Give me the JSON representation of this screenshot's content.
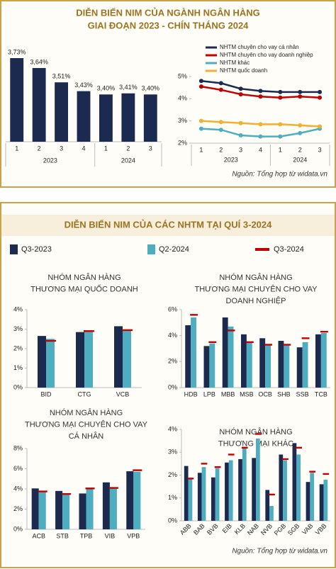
{
  "panel1": {
    "title": [
      "DIỄN BIẾN NIM CỦA NGÀNH NGÂN HÀNG",
      "GIAI ĐOẠN 2023 - CHÍN THÁNG 2024"
    ],
    "source": "Nguồn: Tổng hợp từ widata.vn"
  },
  "panel2": {
    "title": "DIỄN BIẾN NIM CỦA CÁC NHTM TẠI QUÍ 3-2024",
    "source": "Nguồn: Tổng hợp từ widata.vn",
    "legend": [
      {
        "name": "Q3-2023",
        "color": "#1b2a4e",
        "style": "bar"
      },
      {
        "name": "Q2-2024",
        "color": "#4eaebf",
        "style": "bar"
      },
      {
        "name": "Q3-2024",
        "color": "#c00000",
        "style": "marker"
      }
    ]
  },
  "chart_data": [
    {
      "type": "bar",
      "categories": [
        "1",
        "2",
        "3",
        "4",
        "1",
        "2",
        "3"
      ],
      "groups": [
        {
          "label": "2023",
          "span": 4
        },
        {
          "label": "2024",
          "span": 3
        }
      ],
      "values": [
        3.73,
        3.64,
        3.51,
        3.43,
        3.4,
        3.41,
        3.4
      ],
      "value_labels": [
        "3,73%",
        "3,64%",
        "3,51%",
        "3,43%",
        "3,40%",
        "3,41%",
        "3,40%"
      ],
      "color": "#1b2a4e"
    },
    {
      "type": "line",
      "categories": [
        "1",
        "2",
        "3",
        "4",
        "1",
        "2",
        "3"
      ],
      "groups": [
        {
          "label": "2023",
          "span": 4
        },
        {
          "label": "2024",
          "span": 3
        }
      ],
      "ylim": [
        2,
        5
      ],
      "yticks": [
        {
          "value": 2,
          "label": "2%"
        },
        {
          "value": 3,
          "label": "3%"
        },
        {
          "value": 4,
          "label": "4%"
        },
        {
          "value": 5,
          "label": "5%"
        }
      ],
      "series": [
        {
          "name": "NHTM chuyên cho vay cá nhân",
          "color": "#1b2a4e",
          "values": [
            4.8,
            4.7,
            4.45,
            4.35,
            4.3,
            4.3,
            4.3
          ]
        },
        {
          "name": "NHTM chuyên cho vay doanh nghiệp",
          "color": "#c00000",
          "values": [
            4.55,
            4.4,
            4.2,
            4.1,
            4.05,
            4.1,
            4.05
          ]
        },
        {
          "name": "NHTM khác",
          "color": "#4eaebf",
          "values": [
            2.65,
            2.6,
            2.35,
            2.3,
            2.3,
            2.45,
            2.65
          ]
        },
        {
          "name": "NHTM quốc doanh",
          "color": "#f0b030",
          "values": [
            3.0,
            2.95,
            2.9,
            2.85,
            2.85,
            2.8,
            2.75
          ]
        }
      ]
    },
    {
      "type": "bar",
      "title": [
        "NHÓM NGÂN HÀNG",
        "THƯƠNG MẠI QUỐC DOANH"
      ],
      "categories": [
        "BID",
        "CTG",
        "VCB"
      ],
      "ylim": [
        0,
        4
      ],
      "yticks": [
        {
          "value": 0,
          "label": "0%"
        },
        {
          "value": 1,
          "label": "1%"
        },
        {
          "value": 2,
          "label": "2%"
        },
        {
          "value": 3,
          "label": "3%"
        },
        {
          "value": 4,
          "label": "4%"
        }
      ],
      "series": [
        {
          "values": [
            2.65,
            2.85,
            3.15
          ]
        },
        {
          "values": [
            2.5,
            2.9,
            2.95
          ]
        },
        {
          "values": [
            2.4,
            2.9,
            2.95
          ]
        }
      ]
    },
    {
      "type": "bar",
      "title": [
        "NHÓM NGÂN HÀNG",
        "THƯƠNG MẠI CHUYÊN CHO VAY",
        "DOANH NGHIỆP"
      ],
      "categories": [
        "HDB",
        "LPB",
        "MBB",
        "MSB",
        "OCB",
        "SHB",
        "SSB",
        "TCB"
      ],
      "ylim": [
        0,
        6
      ],
      "yticks": [
        {
          "value": 0,
          "label": "0%"
        },
        {
          "value": 2,
          "label": "2%"
        },
        {
          "value": 4,
          "label": "4%"
        },
        {
          "value": 6,
          "label": "6%"
        }
      ],
      "series": [
        {
          "values": [
            4.8,
            3.2,
            5.4,
            4.1,
            3.8,
            3.6,
            3.1,
            4.1
          ]
        },
        {
          "values": [
            5.4,
            3.4,
            4.7,
            3.5,
            3.3,
            3.3,
            3.5,
            4.2
          ]
        },
        {
          "values": [
            5.6,
            3.5,
            4.4,
            3.5,
            3.3,
            3.3,
            3.8,
            4.3
          ]
        }
      ]
    },
    {
      "type": "bar",
      "title": [
        "NHÓM NGÂN HÀNG",
        "THƯƠNG MẠI CHUYÊN CHO VAY",
        "CÁ NHÂN"
      ],
      "categories": [
        "ACB",
        "STB",
        "TPB",
        "VIB",
        "VPB"
      ],
      "ylim": [
        0,
        8
      ],
      "yticks": [
        {
          "value": 0,
          "label": "0%"
        },
        {
          "value": 2,
          "label": "2%"
        },
        {
          "value": 4,
          "label": "4%"
        },
        {
          "value": 6,
          "label": "6%"
        },
        {
          "value": 8,
          "label": "8%"
        }
      ],
      "series": [
        {
          "values": [
            4.05,
            3.8,
            3.55,
            4.65,
            5.75
          ]
        },
        {
          "values": [
            3.75,
            3.45,
            4.05,
            4.05,
            5.7
          ]
        },
        {
          "values": [
            3.75,
            3.5,
            4.05,
            4.1,
            5.85
          ]
        }
      ]
    },
    {
      "type": "bar",
      "title": [
        "NHÓM NGÂN HÀNG",
        "THƯƠNG MẠI KHÁC"
      ],
      "categories": [
        "ABB",
        "BAB",
        "BVB",
        "EIB",
        "KLB",
        "NAB",
        "NVB",
        "PGB",
        "SGB",
        "VAB",
        "VBB"
      ],
      "rotate_labels": true,
      "ylim": [
        0,
        4
      ],
      "yticks": [
        {
          "value": 0,
          "label": "0%"
        },
        {
          "value": 1,
          "label": "1%"
        },
        {
          "value": 2,
          "label": "2%"
        },
        {
          "value": 3,
          "label": "3%"
        },
        {
          "value": 4,
          "label": "4%"
        }
      ],
      "series": [
        {
          "values": [
            2.4,
            2.1,
            1.9,
            2.55,
            2.7,
            2.75,
            1.35,
            2.9,
            3.4,
            1.7,
            1.6
          ]
        },
        {
          "values": [
            1.85,
            2.35,
            2.3,
            2.65,
            3.2,
            3.6,
            0.65,
            2.65,
            2.9,
            2.1,
            1.8
          ]
        },
        {
          "values": [
            1.85,
            2.5,
            2.35,
            2.9,
            3.2,
            3.8,
            1.15,
            2.7,
            3.2,
            2.15,
            2.05
          ]
        }
      ]
    }
  ]
}
